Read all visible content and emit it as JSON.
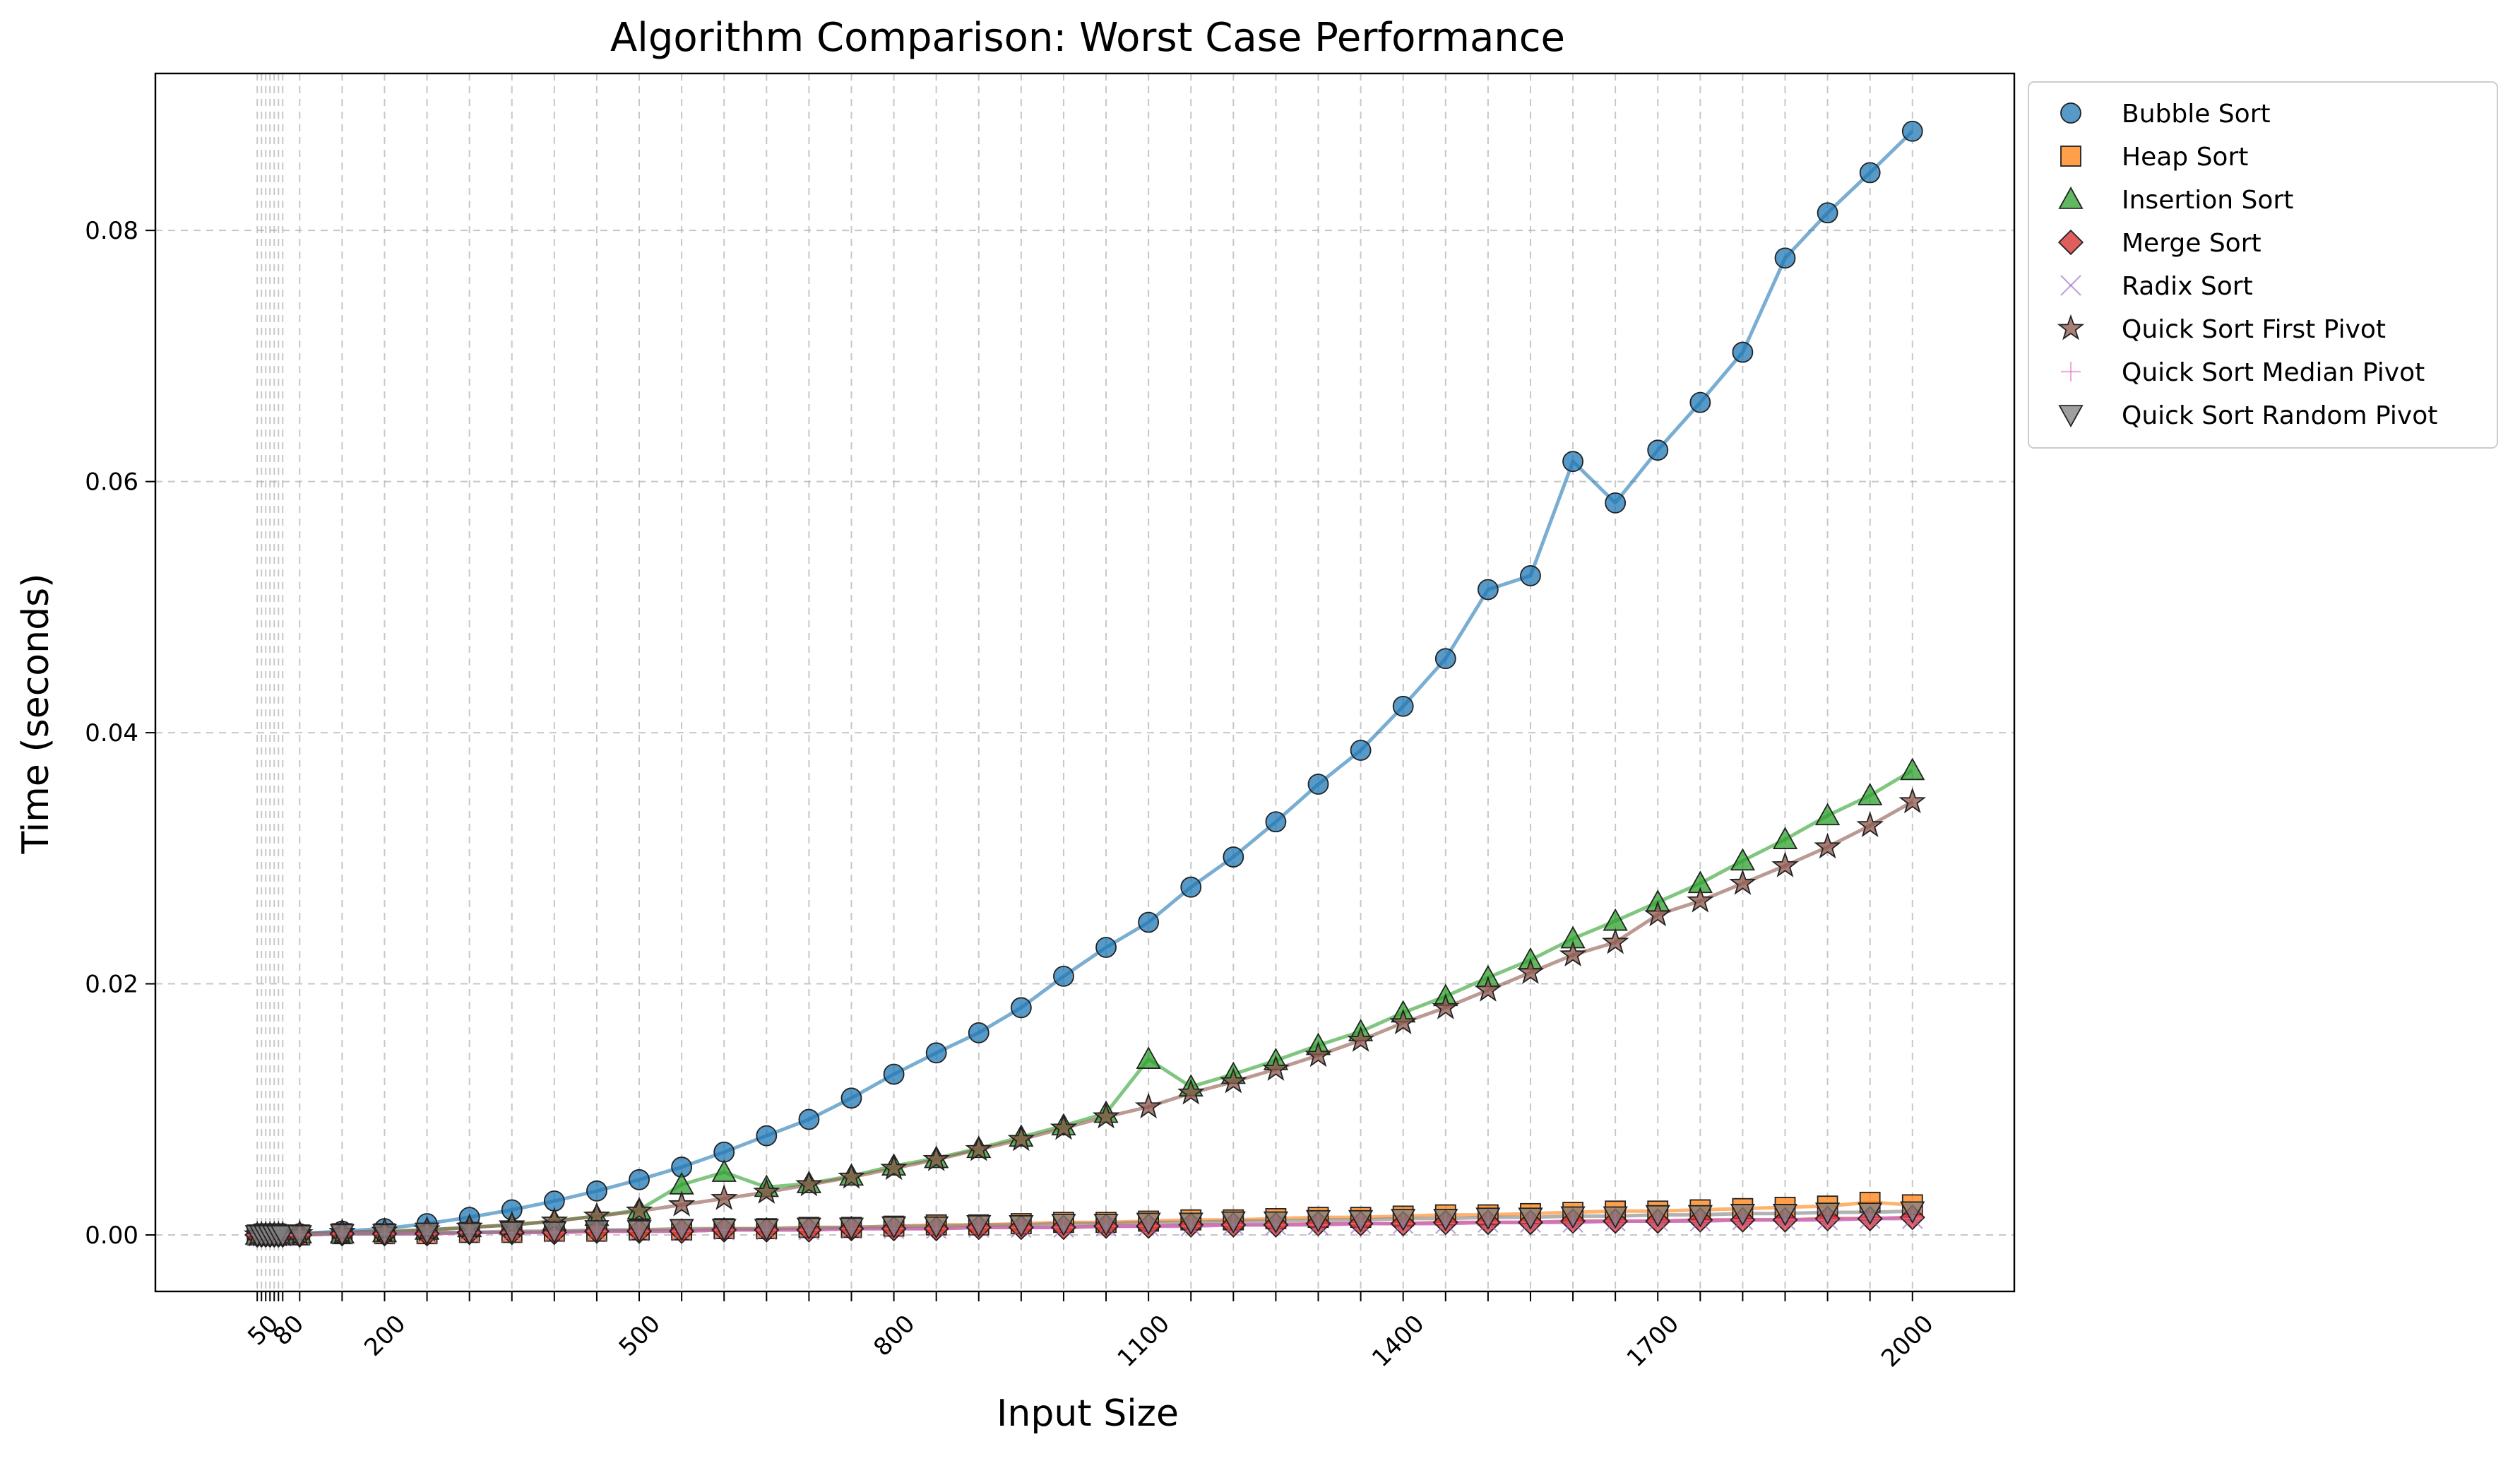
{
  "chart_data": {
    "type": "line",
    "title": "Algorithm Comparison: Worst Case Performance",
    "xlabel": "Input Size",
    "ylabel": "Time (seconds)",
    "xlim": [
      -70,
      2120
    ],
    "ylim": [
      -0.0045,
      0.0925
    ],
    "grid": true,
    "legend_placement": "outside upper right",
    "x": [
      50,
      55,
      60,
      65,
      70,
      75,
      80,
      100,
      150,
      200,
      250,
      300,
      350,
      400,
      450,
      500,
      550,
      600,
      650,
      700,
      750,
      800,
      850,
      900,
      950,
      1000,
      1050,
      1100,
      1150,
      1200,
      1250,
      1300,
      1350,
      1400,
      1450,
      1500,
      1550,
      1600,
      1650,
      1700,
      1750,
      1800,
      1850,
      1900,
      1950,
      2000
    ],
    "xtick_labels": [
      {
        "value": 50,
        "label": "50"
      },
      {
        "value": 80,
        "label": "80"
      },
      {
        "value": 200,
        "label": "200"
      },
      {
        "value": 500,
        "label": "500"
      },
      {
        "value": 800,
        "label": "800"
      },
      {
        "value": 1100,
        "label": "1100"
      },
      {
        "value": 1400,
        "label": "1400"
      },
      {
        "value": 1700,
        "label": "1700"
      },
      {
        "value": 2000,
        "label": "2000"
      }
    ],
    "yticks": [
      0.0,
      0.02,
      0.04,
      0.06,
      0.08
    ],
    "ytick_labels": [
      "0.00",
      "0.02",
      "0.04",
      "0.06",
      "0.08"
    ],
    "series": [
      {
        "name": "Bubble Sort",
        "color": "#1f77b4",
        "marker": "circle",
        "values": [
          0.0001,
          0.0001,
          0.0001,
          0.0001,
          0.0001,
          0.0001,
          0.0001,
          0.0001,
          0.0003,
          0.0005,
          0.0009,
          0.0014,
          0.002,
          0.0027,
          0.0035,
          0.0044,
          0.0054,
          0.0066,
          0.0079,
          0.0092,
          0.0109,
          0.0128,
          0.0145,
          0.0161,
          0.0181,
          0.0206,
          0.0229,
          0.0249,
          0.0277,
          0.0301,
          0.0329,
          0.0359,
          0.0386,
          0.0421,
          0.0459,
          0.0514,
          0.0525,
          0.0616,
          0.0583,
          0.0625,
          0.0663,
          0.0703,
          0.0778,
          0.0814,
          0.0846,
          0.0879
        ]
      },
      {
        "name": "Heap Sort",
        "color": "#ff7f0e",
        "marker": "square",
        "values": [
          0.0,
          0.0,
          0.0,
          0.0,
          0.0,
          0.0,
          0.0,
          0.0,
          0.0001,
          0.0001,
          0.0001,
          0.0002,
          0.0002,
          0.0003,
          0.0003,
          0.0004,
          0.0004,
          0.0005,
          0.0005,
          0.0006,
          0.0006,
          0.0007,
          0.0008,
          0.0008,
          0.0009,
          0.001,
          0.001,
          0.0011,
          0.0012,
          0.0012,
          0.0013,
          0.0014,
          0.0014,
          0.0015,
          0.0016,
          0.0016,
          0.0017,
          0.0018,
          0.0019,
          0.0019,
          0.002,
          0.0021,
          0.0022,
          0.0023,
          0.0026,
          0.0024
        ]
      },
      {
        "name": "Insertion Sort",
        "color": "#2ca02c",
        "marker": "triangle-up",
        "values": [
          0.0,
          0.0,
          0.0,
          0.0,
          0.0,
          0.0,
          0.0,
          0.0001,
          0.0001,
          0.0002,
          0.0004,
          0.0006,
          0.0008,
          0.0011,
          0.0015,
          0.002,
          0.004,
          0.005,
          0.0038,
          0.0041,
          0.0047,
          0.0055,
          0.0061,
          0.0069,
          0.0078,
          0.0087,
          0.0097,
          0.014,
          0.0118,
          0.0128,
          0.0139,
          0.0151,
          0.0162,
          0.0177,
          0.019,
          0.0205,
          0.0219,
          0.0236,
          0.025,
          0.0265,
          0.028,
          0.0298,
          0.0315,
          0.0334,
          0.035,
          0.037
        ]
      },
      {
        "name": "Merge Sort",
        "color": "#d62728",
        "marker": "diamond",
        "values": [
          0.0,
          0.0,
          0.0,
          0.0,
          0.0,
          0.0,
          0.0,
          0.0,
          0.0001,
          0.0001,
          0.0001,
          0.0002,
          0.0002,
          0.0002,
          0.0003,
          0.0003,
          0.0003,
          0.0004,
          0.0004,
          0.0004,
          0.0005,
          0.0005,
          0.0005,
          0.0006,
          0.0006,
          0.0006,
          0.0007,
          0.0007,
          0.0008,
          0.0008,
          0.0008,
          0.0009,
          0.0009,
          0.0009,
          0.001,
          0.001,
          0.001,
          0.0011,
          0.0011,
          0.0011,
          0.0012,
          0.0012,
          0.0012,
          0.0013,
          0.0013,
          0.0014
        ]
      },
      {
        "name": "Radix Sort",
        "color": "#9467bd",
        "marker": "x",
        "values": [
          0.0,
          0.0,
          0.0,
          0.0,
          0.0,
          0.0,
          0.0,
          0.0,
          0.0001,
          0.0001,
          0.0001,
          0.0002,
          0.0002,
          0.0002,
          0.0003,
          0.0003,
          0.0003,
          0.0004,
          0.0004,
          0.0004,
          0.0005,
          0.0005,
          0.0005,
          0.0006,
          0.0006,
          0.0006,
          0.0007,
          0.0007,
          0.0007,
          0.0008,
          0.0008,
          0.0008,
          0.0009,
          0.0009,
          0.0009,
          0.001,
          0.001,
          0.001,
          0.0011,
          0.0011,
          0.0011,
          0.0012,
          0.0012,
          0.0012,
          0.0013,
          0.0013
        ]
      },
      {
        "name": "Quick Sort First Pivot",
        "color": "#8c564b",
        "marker": "star",
        "values": [
          0.0,
          0.0,
          0.0,
          0.0,
          0.0,
          0.0,
          0.0,
          0.0001,
          0.0002,
          0.0003,
          0.0004,
          0.0006,
          0.0008,
          0.0011,
          0.0015,
          0.0019,
          0.0024,
          0.0029,
          0.0034,
          0.004,
          0.0046,
          0.0053,
          0.006,
          0.0068,
          0.0076,
          0.0085,
          0.0094,
          0.0102,
          0.0113,
          0.0122,
          0.0132,
          0.0143,
          0.0155,
          0.0169,
          0.0181,
          0.0195,
          0.0209,
          0.0223,
          0.0233,
          0.0255,
          0.0266,
          0.028,
          0.0294,
          0.0309,
          0.0326,
          0.0345
        ]
      },
      {
        "name": "Quick Sort Median Pivot",
        "color": "#e377c2",
        "marker": "plus",
        "values": [
          0.0,
          0.0,
          0.0,
          0.0,
          0.0,
          0.0,
          0.0,
          0.0,
          0.0001,
          0.0001,
          0.0001,
          0.0002,
          0.0002,
          0.0002,
          0.0003,
          0.0003,
          0.0003,
          0.0004,
          0.0004,
          0.0004,
          0.0005,
          0.0005,
          0.0005,
          0.0006,
          0.0006,
          0.0006,
          0.0007,
          0.0007,
          0.0007,
          0.0008,
          0.0008,
          0.0008,
          0.0009,
          0.0009,
          0.0009,
          0.001,
          0.001,
          0.001,
          0.0011,
          0.0011,
          0.0011,
          0.0012,
          0.0012,
          0.0012,
          0.0013,
          0.0013
        ]
      },
      {
        "name": "Quick Sort Random Pivot",
        "color": "#7f7f7f",
        "marker": "triangle-down",
        "values": [
          0.0,
          0.0,
          0.0,
          0.0,
          0.0,
          0.0,
          0.0,
          0.0,
          0.0001,
          0.0001,
          0.0002,
          0.0002,
          0.0003,
          0.0003,
          0.0004,
          0.0004,
          0.0005,
          0.0005,
          0.0005,
          0.0006,
          0.0006,
          0.0007,
          0.0007,
          0.0008,
          0.0008,
          0.0009,
          0.0009,
          0.001,
          0.001,
          0.0011,
          0.0011,
          0.0012,
          0.0012,
          0.0013,
          0.0013,
          0.0014,
          0.0014,
          0.0015,
          0.0015,
          0.0016,
          0.0016,
          0.0017,
          0.0017,
          0.0018,
          0.0018,
          0.0019
        ]
      }
    ]
  }
}
